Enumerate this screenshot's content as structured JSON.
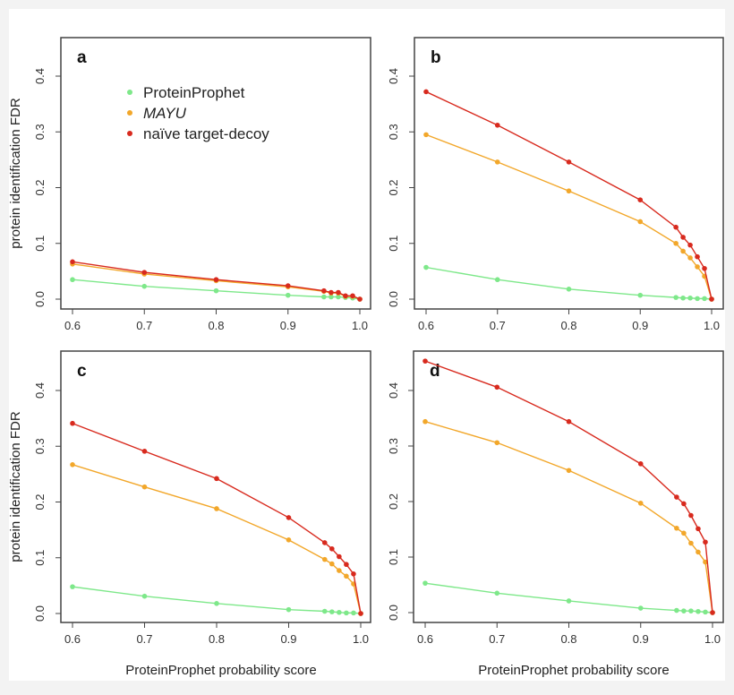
{
  "colors": {
    "ProteinProphet": "#7ee88a",
    "MAYU": "#f2a72a",
    "naive": "#d82a1e"
  },
  "chart_data": [
    {
      "type": "line",
      "panel_label": "a",
      "xlabel": "",
      "ylabel": "protein identification FDR",
      "xlim": [
        0.6,
        1.0
      ],
      "ylim": [
        0,
        0.4
      ],
      "xticks": [
        "0.6",
        "0.7",
        "0.8",
        "0.9",
        "1.0"
      ],
      "yticks": [
        "0.0",
        "0.1",
        "0.2",
        "0.3",
        "0.4"
      ],
      "legend": {
        "placement": "top-center",
        "entries": [
          "ProteinProphet",
          "MAYU",
          "naïve target-decoy"
        ]
      },
      "x": [
        0.6,
        0.7,
        0.8,
        0.9,
        0.95,
        0.96,
        0.97,
        0.98,
        0.99,
        1.0
      ],
      "series": [
        {
          "name": "ProteinProphet",
          "color_key": "ProteinProphet",
          "values": [
            0.035,
            0.023,
            0.015,
            0.007,
            0.004,
            0.004,
            0.004,
            0.003,
            0.002,
            0
          ]
        },
        {
          "name": "MAYU",
          "color_key": "MAYU",
          "values": [
            0.063,
            0.045,
            0.033,
            0.022,
            0.014,
            0.011,
            0.011,
            0.005,
            0.005,
            0
          ]
        },
        {
          "name": "naïve target-decoy",
          "color_key": "naive",
          "values": [
            0.067,
            0.048,
            0.035,
            0.024,
            0.015,
            0.012,
            0.012,
            0.006,
            0.006,
            0
          ]
        }
      ]
    },
    {
      "type": "line",
      "panel_label": "b",
      "xlabel": "",
      "ylabel": "",
      "xlim": [
        0.6,
        1.0
      ],
      "ylim": [
        0,
        0.4
      ],
      "xticks": [
        "0.6",
        "0.7",
        "0.8",
        "0.9",
        "1.0"
      ],
      "yticks": [
        "0.0",
        "0.1",
        "0.2",
        "0.3",
        "0.4"
      ],
      "x": [
        0.6,
        0.7,
        0.8,
        0.9,
        0.95,
        0.96,
        0.97,
        0.98,
        0.99,
        1.0
      ],
      "series": [
        {
          "name": "ProteinProphet",
          "color_key": "ProteinProphet",
          "values": [
            0.057,
            0.035,
            0.018,
            0.007,
            0.003,
            0.002,
            0.002,
            0.001,
            0.001,
            0
          ]
        },
        {
          "name": "MAYU",
          "color_key": "MAYU",
          "values": [
            0.295,
            0.246,
            0.194,
            0.139,
            0.1,
            0.086,
            0.074,
            0.058,
            0.041,
            0
          ]
        },
        {
          "name": "naïve target-decoy",
          "color_key": "naive",
          "values": [
            0.372,
            0.312,
            0.246,
            0.178,
            0.129,
            0.111,
            0.097,
            0.076,
            0.055,
            0
          ]
        }
      ]
    },
    {
      "type": "line",
      "panel_label": "c",
      "xlabel": "ProteinProphet probability score",
      "ylabel": "protein identification FDR",
      "xlim": [
        0.6,
        1.0
      ],
      "ylim": [
        0,
        0.4
      ],
      "xticks": [
        "0.6",
        "0.7",
        "0.8",
        "0.9",
        "1.0"
      ],
      "yticks": [
        "0.0",
        "0.1",
        "0.2",
        "0.3",
        "0.4"
      ],
      "x": [
        0.6,
        0.7,
        0.8,
        0.9,
        0.95,
        0.96,
        0.97,
        0.98,
        0.99,
        1.0
      ],
      "series": [
        {
          "name": "ProteinProphet",
          "color_key": "ProteinProphet",
          "values": [
            0.048,
            0.031,
            0.018,
            0.007,
            0.004,
            0.003,
            0.002,
            0.001,
            0.001,
            0
          ]
        },
        {
          "name": "MAYU",
          "color_key": "MAYU",
          "values": [
            0.267,
            0.227,
            0.188,
            0.132,
            0.097,
            0.089,
            0.077,
            0.067,
            0.053,
            0
          ]
        },
        {
          "name": "naïve target-decoy",
          "color_key": "naive",
          "values": [
            0.341,
            0.291,
            0.242,
            0.172,
            0.127,
            0.116,
            0.102,
            0.088,
            0.071,
            0
          ]
        }
      ]
    },
    {
      "type": "line",
      "panel_label": "d",
      "xlabel": "ProteinProphet probability score",
      "ylabel": "",
      "xlim": [
        0.6,
        1.0
      ],
      "ylim": [
        0,
        0.4
      ],
      "xticks": [
        "0.6",
        "0.7",
        "0.8",
        "0.9",
        "1.0"
      ],
      "yticks": [
        "0.0",
        "0.1",
        "0.2",
        "0.3",
        "0.4"
      ],
      "x": [
        0.6,
        0.7,
        0.8,
        0.9,
        0.95,
        0.96,
        0.97,
        0.98,
        0.99,
        1.0
      ],
      "series": [
        {
          "name": "ProteinProphet",
          "color_key": "ProteinProphet",
          "values": [
            0.053,
            0.035,
            0.021,
            0.008,
            0.004,
            0.003,
            0.003,
            0.002,
            0.001,
            0
          ]
        },
        {
          "name": "MAYU",
          "color_key": "MAYU",
          "values": [
            0.344,
            0.306,
            0.256,
            0.197,
            0.152,
            0.143,
            0.125,
            0.109,
            0.091,
            0
          ]
        },
        {
          "name": "naïve target-decoy",
          "color_key": "naive",
          "values": [
            0.453,
            0.406,
            0.344,
            0.268,
            0.208,
            0.196,
            0.175,
            0.151,
            0.127,
            0
          ]
        }
      ]
    }
  ]
}
